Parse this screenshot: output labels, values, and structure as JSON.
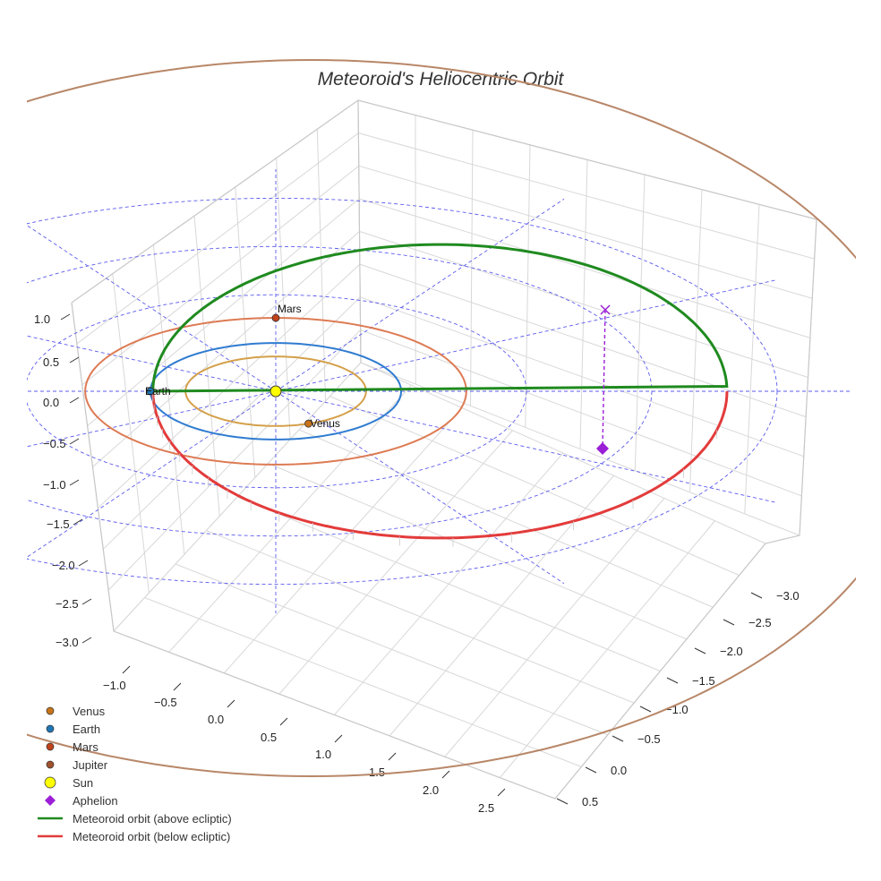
{
  "chart_data": {
    "type": "3d-line",
    "title": "Meteoroid's Heliocentric Orbit",
    "x_ticks": [
      "−1.0",
      "−0.5",
      "0.0",
      "0.5",
      "1.0",
      "1.5",
      "2.0",
      "2.5"
    ],
    "y_ticks": [
      "−3.0",
      "−2.5",
      "−2.0",
      "−1.5",
      "−1.0",
      "−0.5",
      "0.0",
      "0.5"
    ],
    "z_ticks": [
      "1.0",
      "0.5",
      "0.0",
      "−0.5",
      "−1.0",
      "−1.5",
      "−2.0",
      "−2.5",
      "−3.0"
    ],
    "planets": [
      {
        "name": "Venus",
        "orbit_radius_au": 0.72,
        "color": "#d4a04a",
        "marker": "#c8741a"
      },
      {
        "name": "Earth",
        "orbit_radius_au": 1.0,
        "color": "#2f7bd0",
        "marker": "#1f77b4"
      },
      {
        "name": "Mars",
        "orbit_radius_au": 1.52,
        "color": "#dd7b54",
        "marker": "#c0431c"
      },
      {
        "name": "Jupiter",
        "orbit_radius_au": 5.2,
        "color": "#b88768",
        "marker": "#a0522d"
      }
    ],
    "sun": {
      "name": "Sun",
      "color": "#ffff00"
    },
    "meteoroid_orbit": {
      "perihelion_au": 0.98,
      "aphelion_au": 3.6,
      "segments": [
        {
          "name": "Meteoroid orbit (above ecliptic)",
          "color": "#1f8a1f"
        },
        {
          "name": "Meteoroid orbit (below ecliptic)",
          "color": "#e33b3b"
        }
      ],
      "aphelion": {
        "name": "Aphelion",
        "color": "#9b1fd6"
      }
    },
    "reference_circles_au": [
      2.0,
      3.0,
      4.0
    ],
    "legend_position": "bottom-left",
    "legend": [
      {
        "label": "Venus",
        "marker": "circle",
        "color": "#c8741a"
      },
      {
        "label": "Earth",
        "marker": "circle",
        "color": "#1f77b4"
      },
      {
        "label": "Mars",
        "marker": "circle",
        "color": "#c0431c"
      },
      {
        "label": "Jupiter",
        "marker": "circle",
        "color": "#a0522d"
      },
      {
        "label": "Sun",
        "marker": "circle-large",
        "color": "#ffff00"
      },
      {
        "label": "Aphelion",
        "marker": "diamond",
        "color": "#9b1fd6"
      },
      {
        "label": "Meteoroid orbit (above ecliptic)",
        "marker": "line",
        "color": "#1f8a1f"
      },
      {
        "label": "Meteoroid orbit (below ecliptic)",
        "marker": "line",
        "color": "#e33b3b"
      }
    ]
  }
}
